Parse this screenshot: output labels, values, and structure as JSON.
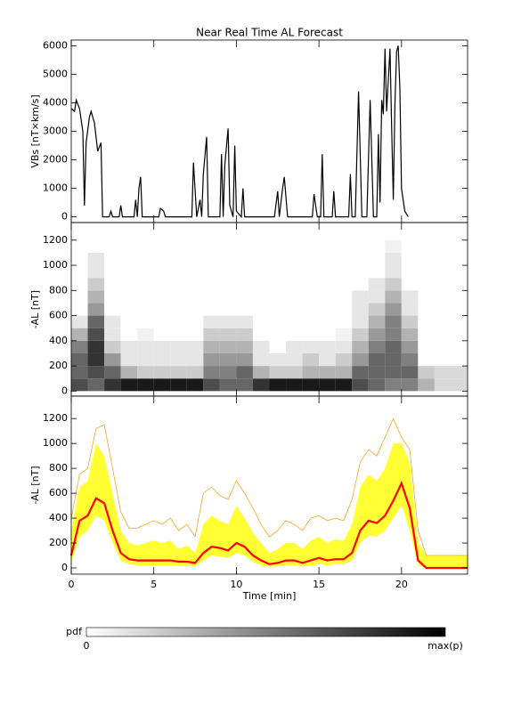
{
  "chart_data": [
    {
      "type": "line",
      "title": "Near Real Time AL Forecast",
      "ylabel": "VBs [nT×km/s]",
      "xlim": [
        0,
        24
      ],
      "xticks": [
        0,
        5,
        10,
        15,
        20
      ],
      "ylim": [
        -200,
        6200
      ],
      "yticks": [
        0,
        1000,
        2000,
        3000,
        4000,
        5000,
        6000
      ],
      "color": "#000000",
      "x": [
        0,
        0.2,
        0.3,
        0.5,
        0.7,
        0.8,
        0.9,
        1.1,
        1.2,
        1.4,
        1.6,
        1.8,
        1.9,
        2.3,
        2.4,
        2.5,
        2.9,
        3.0,
        3.1,
        3.8,
        3.9,
        4.0,
        4.1,
        4.2,
        4.3,
        5.3,
        5.4,
        5.6,
        5.7,
        7.3,
        7.4,
        7.6,
        7.8,
        7.9,
        8.0,
        8.2,
        8.3,
        9.0,
        9.1,
        9.2,
        9.3,
        9.5,
        9.6,
        9.8,
        9.9,
        10.0,
        10.3,
        10.4,
        10.5,
        12.3,
        12.5,
        12.6,
        12.8,
        12.9,
        13.1,
        14.6,
        14.7,
        14.8,
        14.9,
        15.1,
        15.2,
        15.3,
        15.8,
        15.9,
        16.0,
        16.8,
        16.9,
        17.0,
        17.2,
        17.4,
        17.6,
        17.9,
        18.1,
        18.3,
        18.5,
        18.6,
        18.7,
        18.8,
        18.9,
        19.0,
        19.1,
        19.3,
        19.4,
        19.5,
        19.6,
        19.7,
        19.8,
        19.9,
        20.0,
        20.2,
        20.4
      ],
      "values": [
        3800,
        3700,
        4100,
        3800,
        3000,
        400,
        2600,
        3500,
        3700,
        3300,
        2300,
        2600,
        0,
        0,
        200,
        0,
        0,
        400,
        0,
        0,
        600,
        0,
        1000,
        1400,
        0,
        0,
        300,
        200,
        0,
        0,
        1900,
        0,
        600,
        0,
        1500,
        2800,
        0,
        0,
        2200,
        0,
        1800,
        3100,
        400,
        0,
        2500,
        200,
        0,
        1000,
        0,
        0,
        900,
        0,
        1000,
        1400,
        0,
        0,
        800,
        400,
        0,
        0,
        2200,
        0,
        0,
        900,
        0,
        0,
        1500,
        0,
        0,
        4400,
        0,
        0,
        4100,
        0,
        0,
        2900,
        500,
        4100,
        3600,
        5900,
        3700,
        5900,
        3200,
        600,
        3900,
        5800,
        6000,
        4500,
        1000,
        200,
        0
      ]
    },
    {
      "type": "heatmap",
      "ylabel": "-AL [nT]",
      "xlim": [
        0,
        24
      ],
      "xticks": [
        0,
        5,
        10,
        15,
        20
      ],
      "ylim": [
        -40,
        1340
      ],
      "yticks": [
        0,
        200,
        400,
        600,
        800,
        1000,
        1200
      ],
      "xbins": [
        0,
        1,
        2,
        3,
        4,
        5,
        6,
        7,
        8,
        9,
        10,
        11,
        12,
        13,
        14,
        15,
        16,
        17,
        18,
        19,
        20,
        21,
        22,
        23,
        24
      ],
      "ybins": [
        0,
        100,
        200,
        300,
        400,
        500,
        600,
        700,
        800,
        900,
        1000,
        1100,
        1200
      ],
      "density": [
        [
          0.7,
          0.6,
          0.6,
          0.5,
          0.3,
          0.1,
          0,
          0,
          0,
          0,
          0,
          0
        ],
        [
          0.6,
          0.7,
          0.8,
          0.8,
          0.7,
          0.6,
          0.4,
          0.3,
          0.2,
          0.1,
          0.1,
          0
        ],
        [
          0.8,
          0.6,
          0.4,
          0.2,
          0.1,
          0.1,
          0,
          0,
          0,
          0,
          0,
          0
        ],
        [
          0.9,
          0.3,
          0.1,
          0.1,
          0,
          0,
          0,
          0,
          0,
          0,
          0,
          0
        ],
        [
          0.9,
          0.2,
          0.1,
          0.1,
          0.05,
          0,
          0,
          0,
          0,
          0,
          0,
          0
        ],
        [
          0.9,
          0.2,
          0.1,
          0.1,
          0,
          0,
          0,
          0,
          0,
          0,
          0,
          0
        ],
        [
          0.9,
          0.2,
          0.1,
          0.1,
          0,
          0,
          0,
          0,
          0,
          0,
          0,
          0
        ],
        [
          0.9,
          0.2,
          0.1,
          0.1,
          0,
          0,
          0,
          0,
          0,
          0,
          0,
          0
        ],
        [
          0.7,
          0.5,
          0.4,
          0.3,
          0.2,
          0.1,
          0,
          0,
          0,
          0,
          0,
          0
        ],
        [
          0.6,
          0.5,
          0.4,
          0.3,
          0.2,
          0.1,
          0,
          0,
          0,
          0,
          0,
          0
        ],
        [
          0.6,
          0.6,
          0.4,
          0.3,
          0.2,
          0.1,
          0,
          0,
          0,
          0,
          0,
          0
        ],
        [
          0.8,
          0.3,
          0.1,
          0.1,
          0,
          0,
          0,
          0,
          0,
          0,
          0,
          0
        ],
        [
          0.9,
          0.2,
          0.1,
          0,
          0,
          0,
          0,
          0,
          0,
          0,
          0,
          0
        ],
        [
          0.9,
          0.2,
          0.1,
          0.1,
          0,
          0,
          0,
          0,
          0,
          0,
          0,
          0
        ],
        [
          0.9,
          0.3,
          0.2,
          0.1,
          0,
          0,
          0,
          0,
          0,
          0,
          0,
          0
        ],
        [
          0.9,
          0.3,
          0.1,
          0.1,
          0,
          0,
          0,
          0,
          0,
          0,
          0,
          0
        ],
        [
          0.9,
          0.3,
          0.2,
          0.1,
          0.05,
          0,
          0,
          0,
          0,
          0,
          0,
          0
        ],
        [
          0.7,
          0.6,
          0.4,
          0.3,
          0.2,
          0.1,
          0.1,
          0.1,
          0,
          0,
          0,
          0
        ],
        [
          0.6,
          0.6,
          0.6,
          0.5,
          0.4,
          0.3,
          0.2,
          0.1,
          0.1,
          0,
          0,
          0
        ],
        [
          0.5,
          0.6,
          0.6,
          0.6,
          0.5,
          0.5,
          0.4,
          0.3,
          0.2,
          0.1,
          0.1,
          0.05
        ],
        [
          0.5,
          0.6,
          0.5,
          0.4,
          0.3,
          0.2,
          0.1,
          0.1,
          0,
          0,
          0,
          0
        ],
        [
          0.3,
          0.2,
          0,
          0,
          0,
          0,
          0,
          0,
          0,
          0,
          0,
          0
        ],
        [
          0.15,
          0.15,
          0,
          0,
          0,
          0,
          0,
          0,
          0,
          0,
          0,
          0
        ],
        [
          0.15,
          0.15,
          0,
          0,
          0,
          0,
          0,
          0,
          0,
          0,
          0,
          0
        ]
      ]
    },
    {
      "type": "band",
      "ylabel": "-AL [nT]",
      "xlabel": "Time [min]",
      "xlim": [
        0,
        24
      ],
      "xticks": [
        0,
        5,
        10,
        15,
        20
      ],
      "ylim": [
        -50,
        1380
      ],
      "yticks": [
        0,
        200,
        400,
        600,
        800,
        1000,
        1200
      ],
      "x": [
        0,
        0.5,
        1,
        1.5,
        2,
        2.5,
        3,
        3.5,
        4,
        4.5,
        5,
        5.5,
        6,
        6.5,
        7,
        7.5,
        8,
        8.5,
        9,
        9.5,
        10,
        10.5,
        11,
        11.5,
        12,
        12.5,
        13,
        13.5,
        14,
        14.5,
        15,
        15.5,
        16,
        16.5,
        17,
        17.5,
        18,
        18.5,
        19,
        19.5,
        20,
        20.5,
        21,
        21.5,
        22,
        22.5,
        23,
        23.5,
        24
      ],
      "band_color": "#ffff33",
      "outer_color": "#f5a623",
      "median_color": "#ff0000",
      "median": [
        100,
        380,
        420,
        560,
        520,
        300,
        120,
        70,
        60,
        60,
        60,
        60,
        60,
        50,
        50,
        40,
        120,
        170,
        160,
        140,
        200,
        170,
        100,
        60,
        30,
        40,
        60,
        60,
        40,
        60,
        80,
        60,
        70,
        70,
        120,
        300,
        380,
        360,
        420,
        540,
        680,
        480,
        60,
        0,
        0,
        0,
        0,
        0,
        0
      ],
      "upper": [
        300,
        650,
        700,
        1000,
        900,
        600,
        300,
        200,
        180,
        200,
        220,
        200,
        220,
        150,
        180,
        120,
        350,
        420,
        380,
        350,
        500,
        400,
        280,
        200,
        120,
        150,
        200,
        200,
        150,
        220,
        250,
        200,
        230,
        220,
        350,
        650,
        750,
        700,
        800,
        1000,
        1000,
        850,
        200,
        100,
        100,
        100,
        100,
        100,
        100
      ],
      "lower": [
        40,
        250,
        300,
        420,
        380,
        200,
        60,
        30,
        20,
        20,
        20,
        20,
        20,
        15,
        15,
        10,
        60,
        100,
        90,
        80,
        120,
        100,
        50,
        20,
        10,
        10,
        20,
        20,
        10,
        20,
        30,
        20,
        30,
        30,
        60,
        200,
        260,
        250,
        300,
        400,
        500,
        300,
        20,
        0,
        0,
        0,
        0,
        0,
        0
      ],
      "outer": [
        400,
        750,
        800,
        1120,
        1150,
        800,
        450,
        320,
        320,
        350,
        380,
        350,
        400,
        300,
        350,
        250,
        600,
        650,
        580,
        550,
        700,
        600,
        480,
        350,
        250,
        300,
        380,
        350,
        300,
        400,
        420,
        380,
        400,
        380,
        550,
        850,
        950,
        900,
        1050,
        1200,
        1050,
        950,
        300,
        100,
        100,
        100,
        100,
        100,
        100
      ]
    }
  ],
  "colorbar": {
    "label": "pdf",
    "min_label": "0",
    "max_label": "max(p)"
  }
}
